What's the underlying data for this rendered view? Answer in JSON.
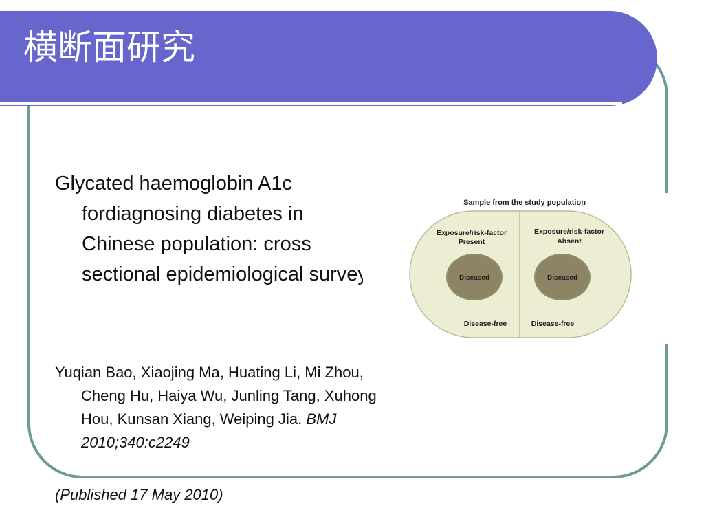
{
  "slide": {
    "title": "横断面研究",
    "main_text": "Glycated haemoglobin A1c fordiagnosing diabetes in Chinese population: cross sectional epidemiological survey",
    "authors_text": "Yuqian Bao, Xiaojing Ma, Huating Li, Mi Zhou, Cheng Hu, Haiya Wu, Junling Tang, Xuhong Hou, Kunsan Xiang, Weiping Jia.",
    "journal": "BMJ 2010;340:c2249",
    "published": "(Published 17 May 2010)"
  },
  "diagram": {
    "heading": "Sample from the study population",
    "left": {
      "label_line1": "Exposure/risk-factor",
      "label_line2": "Present",
      "diseased": "Diseased",
      "disease_free": "Disease-free"
    },
    "right": {
      "label_line1": "Exposure/risk-factor",
      "label_line2": "Absent",
      "diseased": "Diseased",
      "disease_free": "Disease-free"
    },
    "colors": {
      "background": "#ecedd3",
      "diseased_fill": "#8c8465",
      "outline": "#b9bc9c"
    }
  }
}
